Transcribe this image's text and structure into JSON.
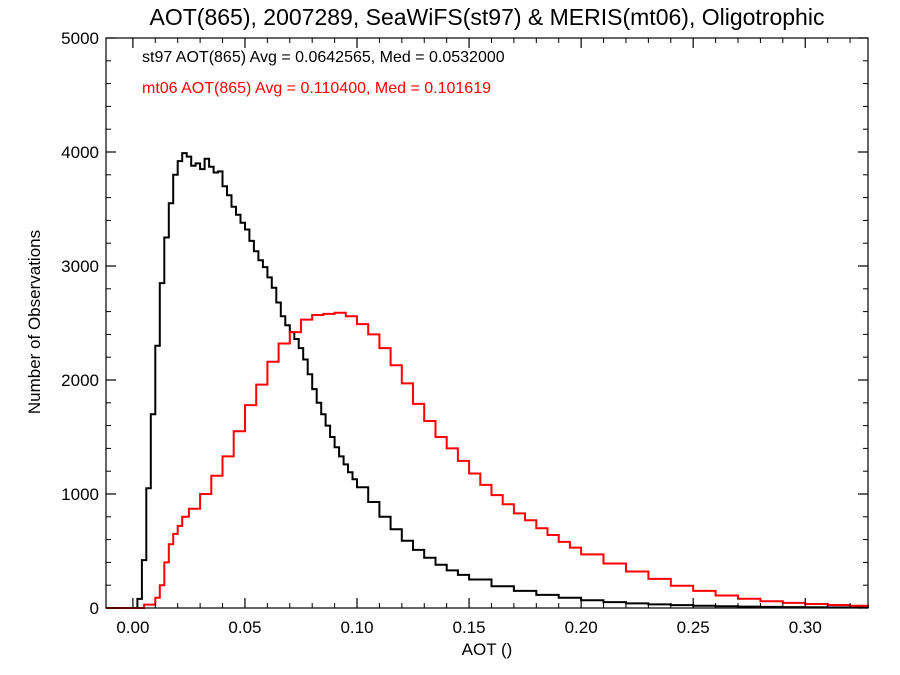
{
  "chart_data": {
    "type": "line",
    "title": "AOT(865), 2007289, SeaWiFS(st97) & MERIS(mt06), Oligotrophic",
    "xlabel": "AOT ()",
    "ylabel": "Number of Observations",
    "xlim": [
      -0.012,
      0.328
    ],
    "ylim": [
      0,
      5000
    ],
    "x_ticks": [
      0.0,
      0.05,
      0.1,
      0.15,
      0.2,
      0.25,
      0.3
    ],
    "x_tick_labels": [
      "0.00",
      "0.05",
      "0.10",
      "0.15",
      "0.20",
      "0.25",
      "0.30"
    ],
    "y_ticks": [
      0,
      1000,
      2000,
      3000,
      4000,
      5000
    ],
    "y_tick_labels": [
      "0",
      "1000",
      "2000",
      "3000",
      "4000",
      "5000"
    ],
    "grid": false,
    "step": true,
    "annotations": [
      {
        "text": "st97 AOT(865) Avg = 0.0642565, Med = 0.0532000",
        "color": "#000000"
      },
      {
        "text": "mt06 AOT(865) Avg = 0.110400, Med = 0.101619",
        "color": "#ff0000"
      }
    ],
    "series": [
      {
        "color": "#000000",
        "x": [
          -0.012,
          0.0,
          0.002,
          0.004,
          0.006,
          0.008,
          0.01,
          0.012,
          0.014,
          0.016,
          0.018,
          0.02,
          0.022,
          0.024,
          0.026,
          0.028,
          0.03,
          0.032,
          0.034,
          0.036,
          0.038,
          0.04,
          0.042,
          0.044,
          0.046,
          0.048,
          0.05,
          0.052,
          0.054,
          0.056,
          0.058,
          0.06,
          0.062,
          0.064,
          0.066,
          0.068,
          0.07,
          0.072,
          0.074,
          0.076,
          0.078,
          0.08,
          0.082,
          0.084,
          0.086,
          0.088,
          0.09,
          0.092,
          0.094,
          0.096,
          0.098,
          0.1,
          0.105,
          0.11,
          0.115,
          0.12,
          0.125,
          0.13,
          0.135,
          0.14,
          0.145,
          0.15,
          0.16,
          0.17,
          0.18,
          0.19,
          0.2,
          0.21,
          0.22,
          0.23,
          0.24,
          0.25,
          0.26,
          0.27,
          0.28,
          0.29,
          0.3,
          0.31,
          0.32,
          0.328
        ],
        "values": [
          0,
          0,
          80,
          420,
          1050,
          1700,
          2300,
          2850,
          3250,
          3550,
          3800,
          3920,
          3990,
          3960,
          3880,
          3900,
          3850,
          3940,
          3870,
          3820,
          3830,
          3700,
          3620,
          3520,
          3450,
          3380,
          3320,
          3220,
          3130,
          3050,
          2990,
          2900,
          2810,
          2680,
          2560,
          2480,
          2420,
          2360,
          2280,
          2180,
          2050,
          1920,
          1800,
          1700,
          1600,
          1500,
          1410,
          1330,
          1260,
          1190,
          1130,
          1060,
          930,
          800,
          690,
          590,
          510,
          440,
          380,
          330,
          290,
          250,
          190,
          150,
          115,
          90,
          68,
          52,
          40,
          32,
          25,
          20,
          15,
          12,
          10,
          8,
          6,
          5,
          4,
          3
        ]
      },
      {
        "color": "#ff0000",
        "x": [
          -0.012,
          0.0,
          0.005,
          0.01,
          0.012,
          0.014,
          0.016,
          0.018,
          0.02,
          0.022,
          0.025,
          0.03,
          0.035,
          0.04,
          0.045,
          0.05,
          0.055,
          0.06,
          0.065,
          0.07,
          0.075,
          0.08,
          0.085,
          0.09,
          0.095,
          0.1,
          0.105,
          0.11,
          0.115,
          0.12,
          0.125,
          0.13,
          0.135,
          0.14,
          0.145,
          0.15,
          0.155,
          0.16,
          0.165,
          0.17,
          0.175,
          0.18,
          0.185,
          0.19,
          0.195,
          0.2,
          0.21,
          0.22,
          0.23,
          0.24,
          0.25,
          0.26,
          0.27,
          0.28,
          0.29,
          0.3,
          0.31,
          0.32,
          0.328
        ],
        "values": [
          0,
          0,
          30,
          90,
          200,
          400,
          560,
          650,
          720,
          800,
          870,
          1000,
          1160,
          1330,
          1550,
          1780,
          1960,
          2160,
          2320,
          2420,
          2530,
          2570,
          2580,
          2590,
          2560,
          2490,
          2400,
          2280,
          2130,
          1970,
          1790,
          1640,
          1500,
          1400,
          1290,
          1180,
          1080,
          990,
          910,
          830,
          770,
          700,
          640,
          580,
          530,
          470,
          390,
          320,
          255,
          195,
          150,
          110,
          82,
          60,
          45,
          35,
          26,
          20,
          15
        ]
      }
    ]
  }
}
